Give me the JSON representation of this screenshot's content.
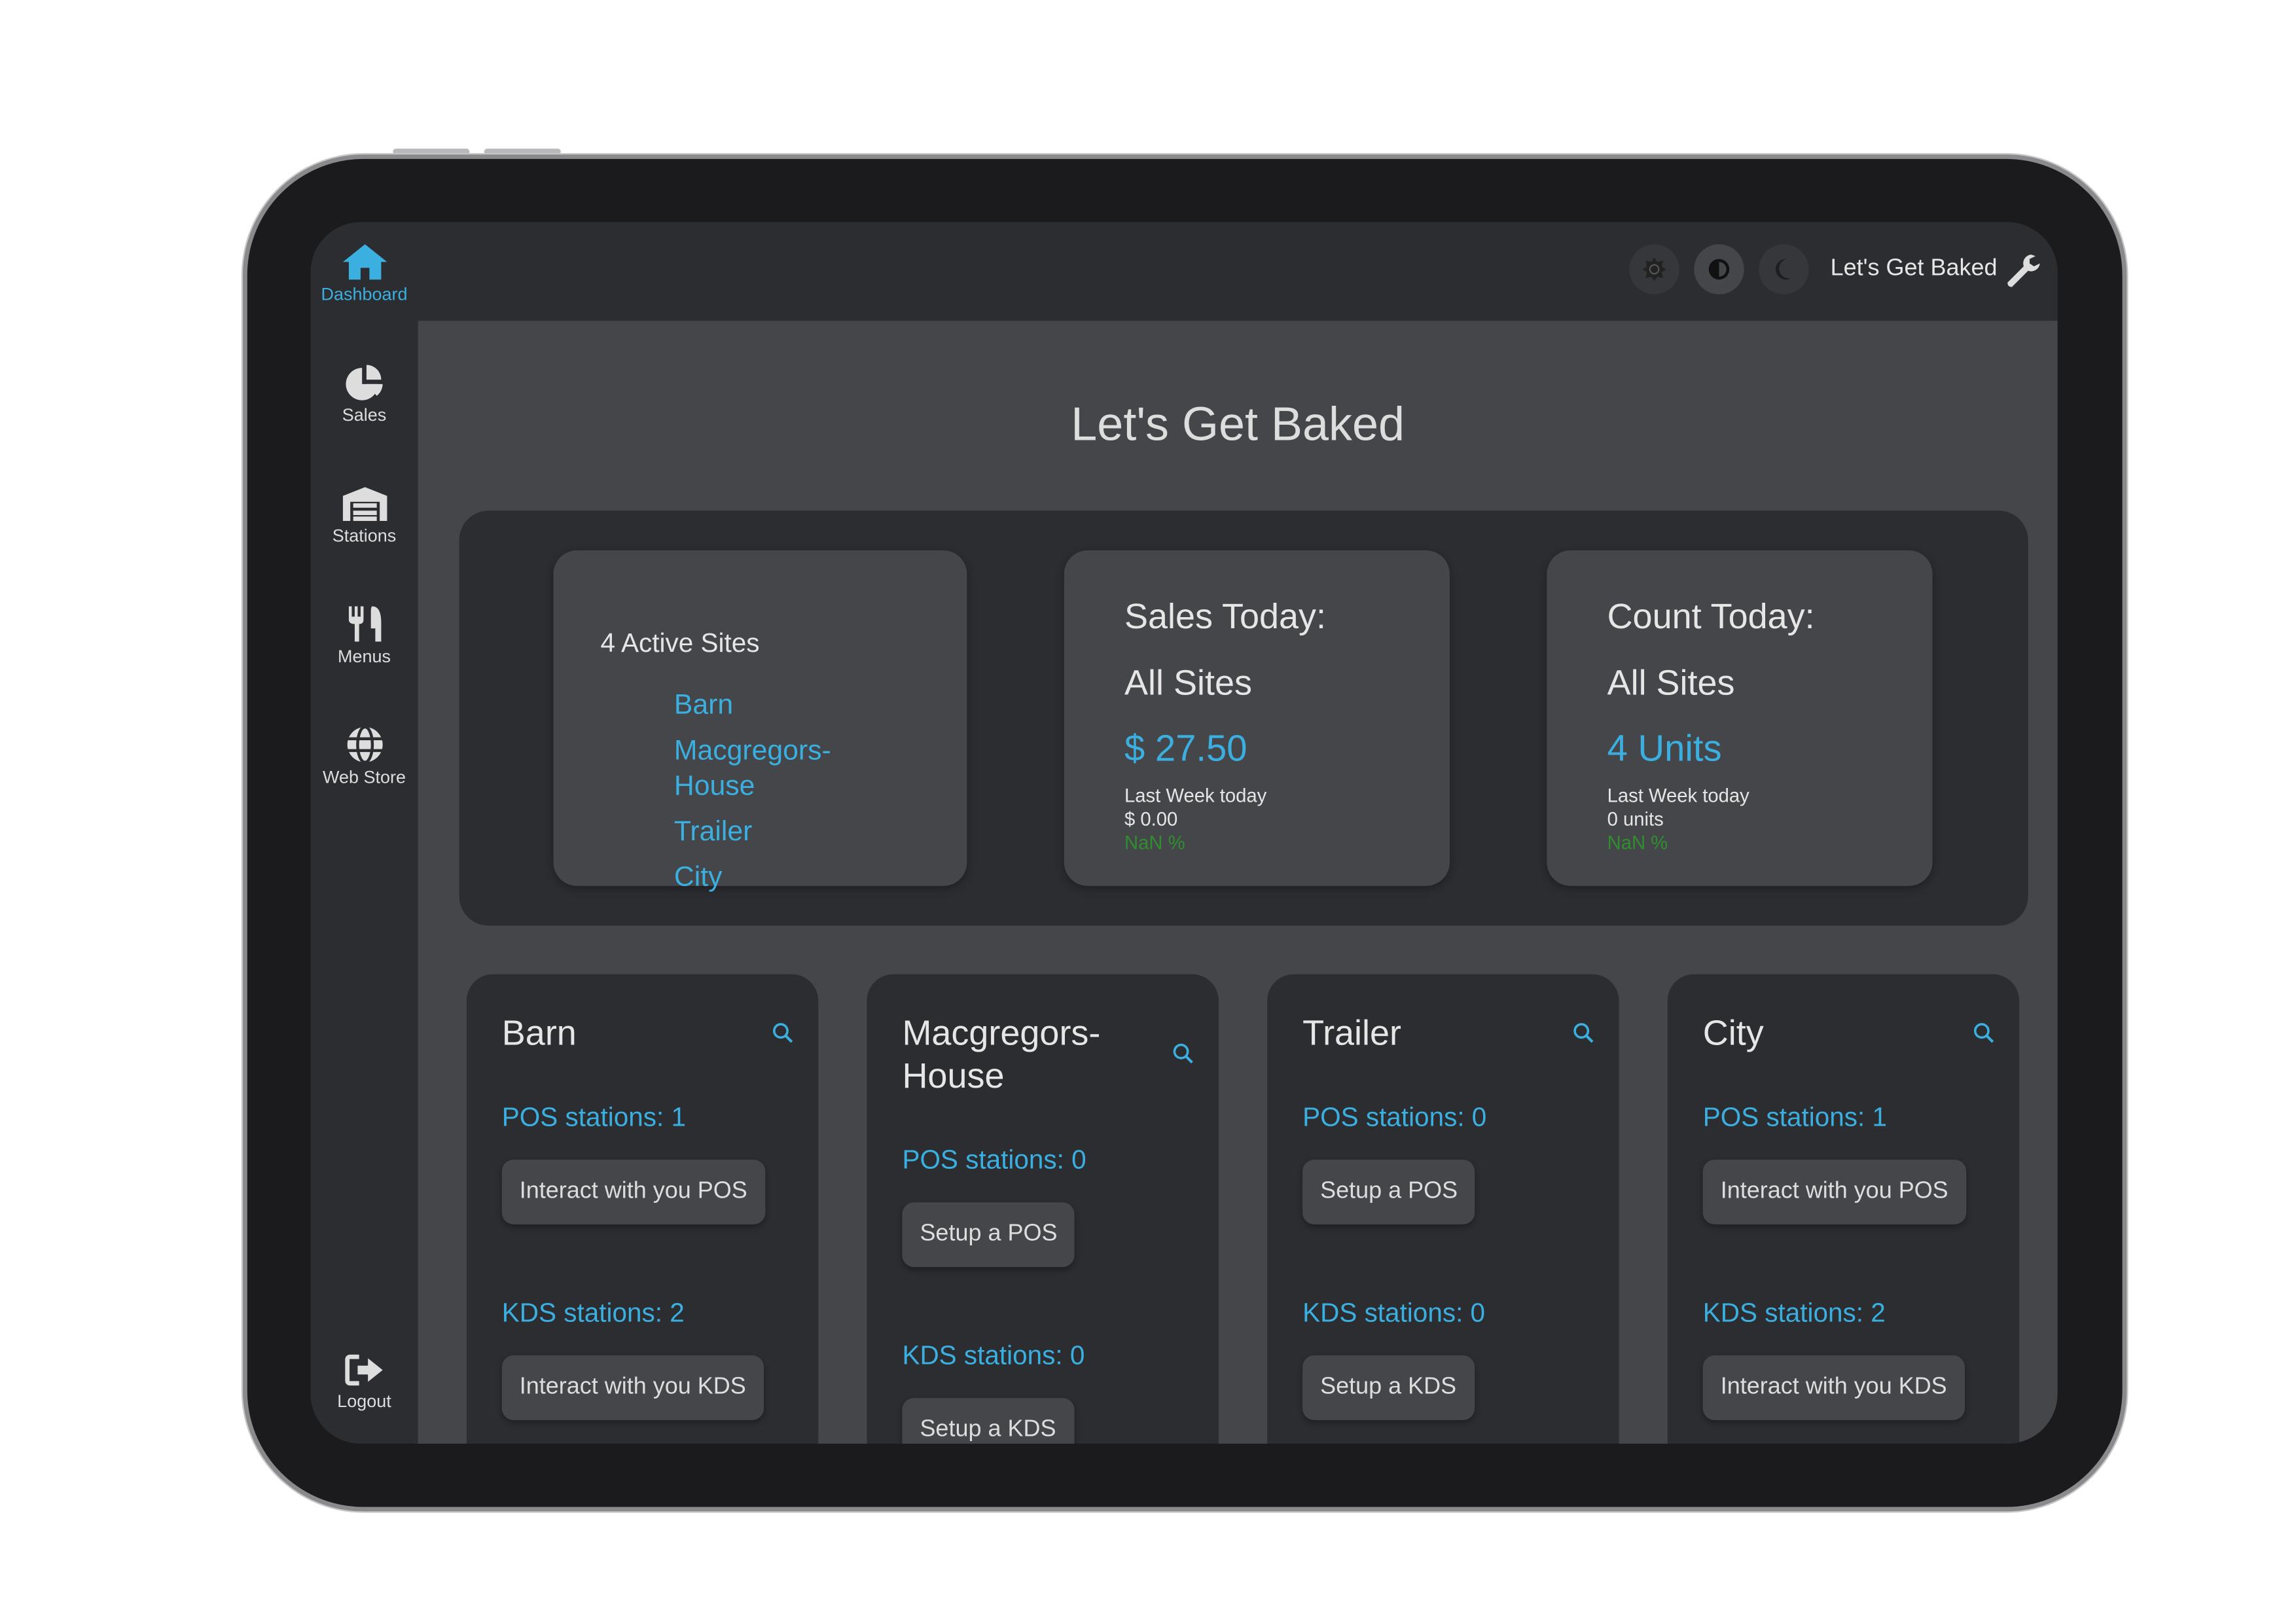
{
  "sidebar": {
    "items": [
      {
        "label": "Dashboard",
        "icon": "home-icon",
        "active": true
      },
      {
        "label": "Sales",
        "icon": "pie-chart-icon"
      },
      {
        "label": "Stations",
        "icon": "warehouse-icon"
      },
      {
        "label": "Menus",
        "icon": "utensils-icon"
      },
      {
        "label": "Web Store",
        "icon": "globe-icon"
      }
    ],
    "logout": "Logout"
  },
  "topbar": {
    "theme_buttons": [
      "sun-icon",
      "contrast-icon",
      "moon-icon"
    ],
    "selected_theme": "contrast",
    "business_name": "Let's Get Baked"
  },
  "page_title": "Let's Get Baked",
  "summary": {
    "sites": {
      "title": "4 Active Sites",
      "items": [
        "Barn",
        "Macgregors-House",
        "Trailer",
        "City"
      ]
    },
    "sales": {
      "title": "Sales Today:",
      "scope": "All Sites",
      "value": "$ 27.50",
      "last_week_label": "Last Week today",
      "last_week_value": "$ 0.00",
      "change": "NaN %"
    },
    "count": {
      "title": "Count Today:",
      "scope": "All Sites",
      "value": "4 Units",
      "last_week_label": "Last Week today",
      "last_week_value": "0 units",
      "change": "NaN %"
    }
  },
  "sites": [
    {
      "name": "Barn",
      "pos": "POS stations: 1",
      "pos_btn": "Interact with you POS",
      "kds": "KDS stations: 2",
      "kds_btn": "Interact with you KDS"
    },
    {
      "name": "Macgregors-House",
      "pos": "POS stations: 0",
      "pos_btn": "Setup a POS",
      "kds": "KDS stations: 0",
      "kds_btn": "Setup a KDS"
    },
    {
      "name": "Trailer",
      "pos": "POS stations: 0",
      "pos_btn": "Setup a POS",
      "kds": "KDS stations: 0",
      "kds_btn": "Setup a KDS"
    },
    {
      "name": "City",
      "pos": "POS stations: 1",
      "pos_btn": "Interact with you POS",
      "kds": "KDS stations: 2",
      "kds_btn": "Interact with you KDS"
    }
  ],
  "colors": {
    "accent": "#3aafe0",
    "positive": "#2f8f2f",
    "panel": "#2c2d31",
    "surface": "#45464a"
  }
}
